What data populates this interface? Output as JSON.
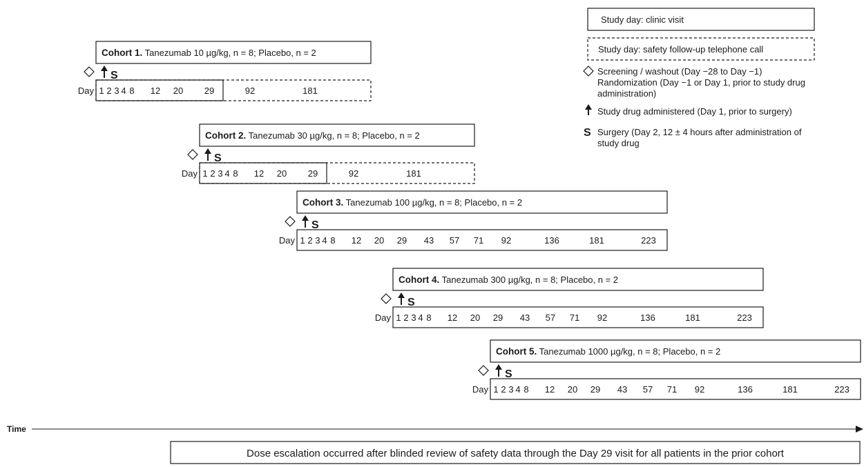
{
  "legend": {
    "clinic_visit": "Study day: clinic visit",
    "telephone_call": "Study day: safety follow-up telephone call",
    "screening_line1": "Screening / washout (Day −28 to Day −1)",
    "screening_line2": "Randomization (Day −1 or Day 1, prior to study drug",
    "screening_line3": "administration)",
    "drug_administered": "Study drug administered (Day 1, prior to surgery)",
    "surgery_symbol": "S",
    "surgery_line1": "Surgery (Day 2, 12 ± 4 hours after administration of",
    "surgery_line2": "study drug"
  },
  "day_label": "Day",
  "surgery_marker": "S",
  "cohorts": [
    {
      "name": "Cohort 1.",
      "desc": "Tanezumab 10 µg/kg, n = 8; Placebo, n = 2",
      "visit_days": [
        "1",
        "2",
        "3",
        "4",
        "8",
        "12",
        "20",
        "29"
      ],
      "call_days": [
        "92",
        "181"
      ]
    },
    {
      "name": "Cohort 2.",
      "desc": "Tanezumab 30 µg/kg, n = 8; Placebo, n = 2",
      "visit_days": [
        "1",
        "2",
        "3",
        "4",
        "8",
        "12",
        "20",
        "29"
      ],
      "call_days": [
        "92",
        "181"
      ]
    },
    {
      "name": "Cohort 3.",
      "desc": "Tanezumab 100 µg/kg, n = 8; Placebo, n = 2",
      "visit_days": [
        "1",
        "2",
        "3",
        "4",
        "8",
        "12",
        "20",
        "29",
        "43",
        "57",
        "71",
        "92",
        "136",
        "181",
        "223"
      ],
      "call_days": []
    },
    {
      "name": "Cohort 4.",
      "desc": "Tanezumab 300 µg/kg, n = 8; Placebo, n = 2",
      "visit_days": [
        "1",
        "2",
        "3",
        "4",
        "8",
        "12",
        "20",
        "29",
        "43",
        "57",
        "71",
        "92",
        "136",
        "181",
        "223"
      ],
      "call_days": []
    },
    {
      "name": "Cohort 5.",
      "desc": "Tanezumab 1000 µg/kg, n = 8; Placebo, n = 2",
      "visit_days": [
        "1",
        "2",
        "3",
        "4",
        "8",
        "12",
        "20",
        "29",
        "43",
        "57",
        "71",
        "92",
        "136",
        "181",
        "223"
      ],
      "call_days": []
    }
  ],
  "time_label": "Time",
  "footnote": "Dose escalation occurred after blinded review of safety data through the Day 29 visit for all patients in the prior cohort"
}
